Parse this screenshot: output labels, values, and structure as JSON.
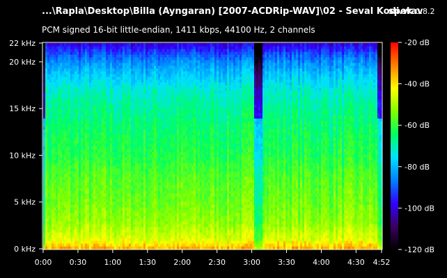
{
  "window": {
    "file_title": "...\\Rapla\\Desktop\\Billa (Ayngaran) [2007-ACDRip-WAV]\\02 - Seval Kodi.wav",
    "app_name": "spek",
    "app_version": "0.8.2",
    "stream_info": "PCM signed 16-bit little-endian, 1411 kbps, 44100 Hz, 2 channels"
  },
  "colors": {
    "background": "#000000",
    "text": "#ffffff",
    "palette": [
      "#000000",
      "#3a0060",
      "#3300ff",
      "#0080ff",
      "#00e0ff",
      "#00ff60",
      "#80ff00",
      "#ffff00",
      "#ff8000",
      "#ff0000"
    ]
  },
  "chart_data": {
    "type": "heatmap",
    "title": "",
    "xlabel": "",
    "ylabel": "",
    "x_unit": "time (m:ss)",
    "y_unit": "kHz",
    "xlim": [
      0,
      292
    ],
    "ylim_khz": [
      0,
      22
    ],
    "x_tick_labels": [
      "0:00",
      "0:30",
      "1:00",
      "1:30",
      "2:00",
      "2:30",
      "3:00",
      "3:30",
      "4:00",
      "4:30",
      "4:52"
    ],
    "x_tick_values": [
      0,
      30,
      60,
      90,
      120,
      150,
      180,
      210,
      240,
      270,
      292
    ],
    "y_tick_labels": [
      "0 kHz",
      "5 kHz",
      "10 kHz",
      "15 kHz",
      "20 kHz",
      "22 kHz"
    ],
    "y_tick_values": [
      0,
      5,
      10,
      15,
      20,
      22
    ],
    "colorbar": {
      "tick_labels": [
        "-20 dB",
        "-40 dB",
        "-60 dB",
        "-80 dB",
        "-100 dB",
        "-120 dB"
      ],
      "tick_values": [
        -20,
        -40,
        -60,
        -80,
        -100,
        -120
      ],
      "range_db": [
        -120,
        -20
      ]
    },
    "intensity_profile_db": {
      "frequency_khz": [
        0,
        1,
        3,
        5,
        8,
        10,
        13,
        15,
        17,
        19,
        20,
        21,
        22
      ],
      "typical_level_db": [
        -35,
        -45,
        -52,
        -55,
        -58,
        -62,
        -65,
        -68,
        -72,
        -80,
        -85,
        -92,
        -100
      ]
    },
    "quiet_segments_s": [
      [
        0,
        2
      ],
      [
        182,
        190
      ],
      [
        289,
        292
      ]
    ]
  }
}
